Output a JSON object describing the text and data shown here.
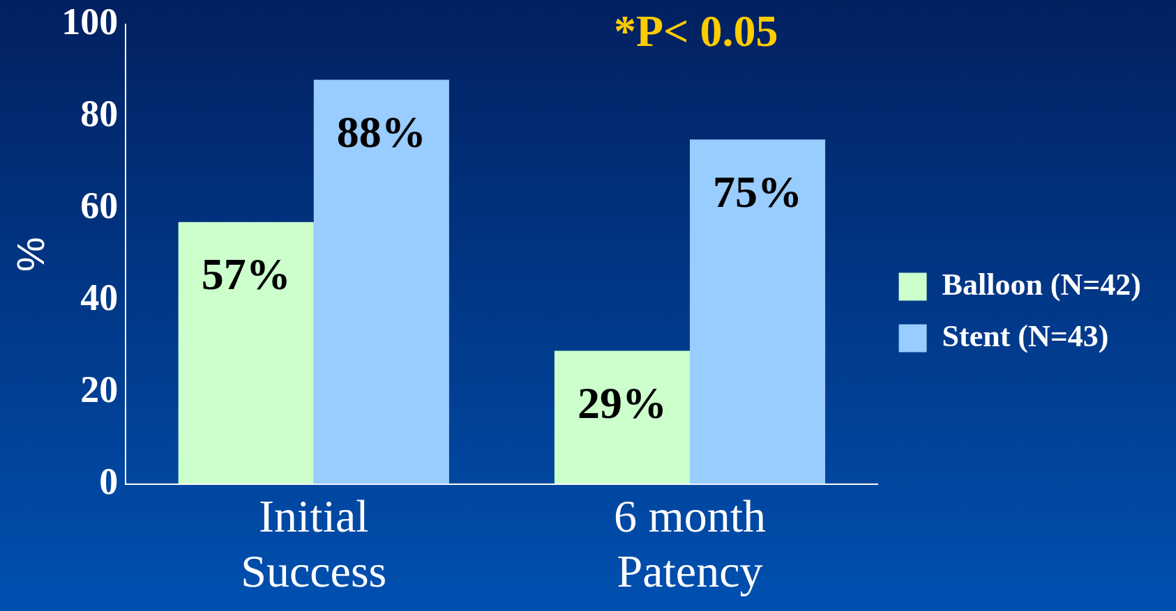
{
  "chart_data": {
    "type": "bar",
    "ylabel": "%",
    "annotations": [
      "*P< 0.05"
    ],
    "categories": [
      "Initial Success",
      "6 month Patency"
    ],
    "series": [
      {
        "name": "Balloon (N=42)",
        "color": "#ccffcc",
        "values": [
          57,
          29
        ],
        "value_labels": [
          "57%",
          "29%"
        ]
      },
      {
        "name": "Stent (N=43)",
        "color": "#99ccff",
        "values": [
          88,
          75
        ],
        "value_labels": [
          "88%",
          "75%"
        ]
      }
    ],
    "ylim": [
      0,
      100
    ],
    "yticks": [
      0,
      20,
      40,
      60,
      80,
      100
    ],
    "grid": false,
    "legend": "right"
  }
}
